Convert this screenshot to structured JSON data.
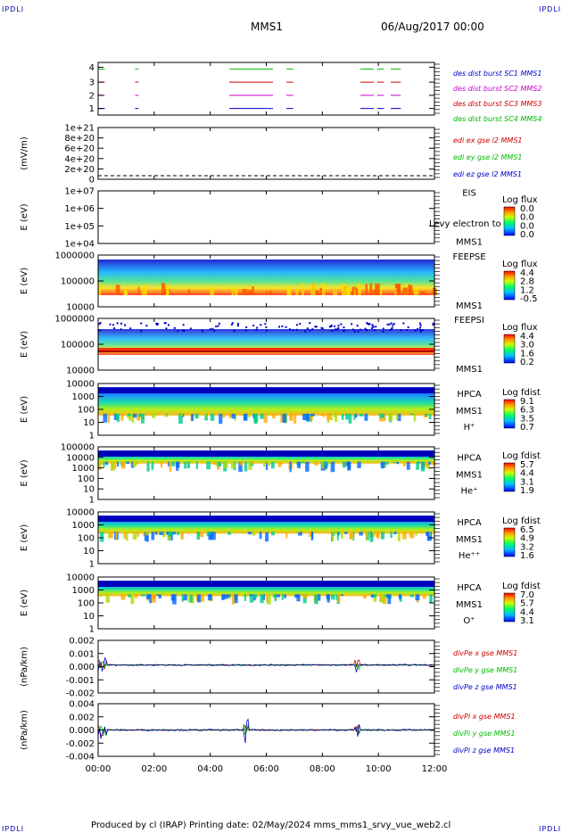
{
  "corners": {
    "tl": "IPDLI",
    "tr": "IPDLI",
    "bl": "IPDLI",
    "br": "IPDLI"
  },
  "header": {
    "mission": "MMS1",
    "date": "06/Aug/2017 00:00"
  },
  "footer": "Produced by cl (IRAP)   Printing date: 02/May/2024   mms_mms1_srvy_vue_web2.cl",
  "x_ticks": [
    "00:00",
    "02:00",
    "04:00",
    "06:00",
    "08:00",
    "10:00",
    "12:00"
  ],
  "colors": {
    "blue": "#0000cc",
    "magenta": "#cc00cc",
    "red": "#cc0000",
    "green": "#00bb00",
    "black": "#000000"
  },
  "chart_data": [
    {
      "type": "timeline",
      "ylabel": "",
      "yticks": [
        "4",
        "3",
        "2",
        "1"
      ],
      "series": [
        {
          "name": "des dist burst SC1 MMS1",
          "color": "#0000cc",
          "level": 1,
          "segments": [
            [
              0.0,
              0.02
            ],
            [
              0.11,
              0.12
            ],
            [
              0.39,
              0.52
            ],
            [
              0.56,
              0.58
            ],
            [
              0.78,
              0.82
            ],
            [
              0.83,
              0.85
            ],
            [
              0.87,
              0.9
            ]
          ]
        },
        {
          "name": "des dist burst SC2 MMS2",
          "color": "#cc00cc",
          "level": 2,
          "segments": [
            [
              0.0,
              0.02
            ],
            [
              0.11,
              0.12
            ],
            [
              0.39,
              0.52
            ],
            [
              0.56,
              0.58
            ],
            [
              0.78,
              0.82
            ],
            [
              0.83,
              0.85
            ],
            [
              0.87,
              0.9
            ]
          ]
        },
        {
          "name": "des dist burst SC3 MMS3",
          "color": "#cc0000",
          "level": 3,
          "segments": [
            [
              0.0,
              0.02
            ],
            [
              0.11,
              0.12
            ],
            [
              0.39,
              0.52
            ],
            [
              0.56,
              0.58
            ],
            [
              0.78,
              0.82
            ],
            [
              0.83,
              0.85
            ],
            [
              0.87,
              0.9
            ]
          ]
        },
        {
          "name": "des dist burst SC4 MMS4",
          "color": "#00bb00",
          "level": 4,
          "segments": [
            [
              0.0,
              0.02
            ],
            [
              0.11,
              0.12
            ],
            [
              0.39,
              0.52
            ],
            [
              0.56,
              0.58
            ],
            [
              0.78,
              0.82
            ],
            [
              0.83,
              0.85
            ],
            [
              0.87,
              0.9
            ]
          ]
        }
      ]
    },
    {
      "type": "line",
      "ylabel": "(mV/m)",
      "yticks": [
        "1e+21",
        "8e+20",
        "6e+20",
        "4e+20",
        "2e+20",
        "0"
      ],
      "series": [
        {
          "name": "edi ex gse l2 MMS1",
          "color": "#cc0000"
        },
        {
          "name": "edi ey gse l2 MMS1",
          "color": "#00bb00"
        },
        {
          "name": "edi ez gse l2 MMS1",
          "color": "#0000cc"
        }
      ]
    },
    {
      "type": "heatmap",
      "ylabel": "E (eV)",
      "yticks": [
        "1e+07",
        "1e+06",
        "1e+05",
        "1e+04"
      ],
      "label_lines": [
        "EIS",
        "MMS1"
      ],
      "overlay": "Levy electron to",
      "cb_title": "Log flux",
      "cb_ticks": [
        "0.0",
        "0.0",
        "0.0",
        "0.0"
      ]
    },
    {
      "type": "heatmap",
      "ylabel": "E (eV)",
      "yticks": [
        "1000000",
        "100000",
        "10000"
      ],
      "label_lines": [
        "FEEPSE",
        "MMS1"
      ],
      "cb_title": "Log flux",
      "cb_ticks": [
        "4.4",
        "2.8",
        "1.2",
        "-0.5"
      ]
    },
    {
      "type": "heatmap",
      "ylabel": "E (eV)",
      "yticks": [
        "1000000",
        "100000",
        "10000"
      ],
      "label_lines": [
        "FEEPSI",
        "MMS1"
      ],
      "cb_title": "Log flux",
      "cb_ticks": [
        "4.4",
        "3.0",
        "1.6",
        "0.2"
      ]
    },
    {
      "type": "heatmap",
      "ylabel": "E (eV)",
      "yticks": [
        "10000",
        "1000",
        "100",
        "10",
        "1"
      ],
      "label_lines": [
        "HPCA",
        "MMS1",
        "H⁺"
      ],
      "cb_title": "Log fdist",
      "cb_ticks": [
        "9.1",
        "6.3",
        "3.5",
        "0.7"
      ]
    },
    {
      "type": "heatmap",
      "ylabel": "E (eV)",
      "yticks": [
        "100000",
        "10000",
        "1000",
        "100",
        "10",
        "1"
      ],
      "label_lines": [
        "HPCA",
        "MMS1",
        "He⁺"
      ],
      "cb_title": "Log fdist",
      "cb_ticks": [
        "5.7",
        "4.4",
        "3.1",
        "1.9"
      ]
    },
    {
      "type": "heatmap",
      "ylabel": "E (eV)",
      "yticks": [
        "10000",
        "1000",
        "100",
        "10",
        "1"
      ],
      "label_lines": [
        "HPCA",
        "MMS1",
        "He⁺⁺"
      ],
      "cb_title": "Log fdist",
      "cb_ticks": [
        "6.5",
        "4.9",
        "3.2",
        "1.6"
      ]
    },
    {
      "type": "heatmap",
      "ylabel": "E (eV)",
      "yticks": [
        "10000",
        "1000",
        "100",
        "10",
        "1"
      ],
      "label_lines": [
        "HPCA",
        "MMS1",
        "O⁺"
      ],
      "cb_title": "Log fdist",
      "cb_ticks": [
        "7.0",
        "5.7",
        "4.4",
        "3.1"
      ]
    },
    {
      "type": "line",
      "ylabel": "(nPa/km)",
      "yticks": [
        "0.002",
        "0.001",
        "0.000",
        "-0.001",
        "-0.002"
      ],
      "ylim": [
        -0.0025,
        0.0022
      ],
      "series": [
        {
          "name": "divPe x gse MMS1",
          "color": "#cc0000"
        },
        {
          "name": "divPe y gse MMS1",
          "color": "#00bb00"
        },
        {
          "name": "divPe z gse MMS1",
          "color": "#0000cc"
        }
      ]
    },
    {
      "type": "line",
      "ylabel": "(nPa/km)",
      "yticks": [
        "0.004",
        "0.002",
        "0.000",
        "-0.002",
        "-0.004"
      ],
      "ylim": [
        -0.0048,
        0.0048
      ],
      "series": [
        {
          "name": "divPi x gse MMS1",
          "color": "#cc0000"
        },
        {
          "name": "divPi y gse MMS1",
          "color": "#00bb00"
        },
        {
          "name": "divPi z gse MMS1",
          "color": "#0000cc"
        }
      ]
    }
  ]
}
